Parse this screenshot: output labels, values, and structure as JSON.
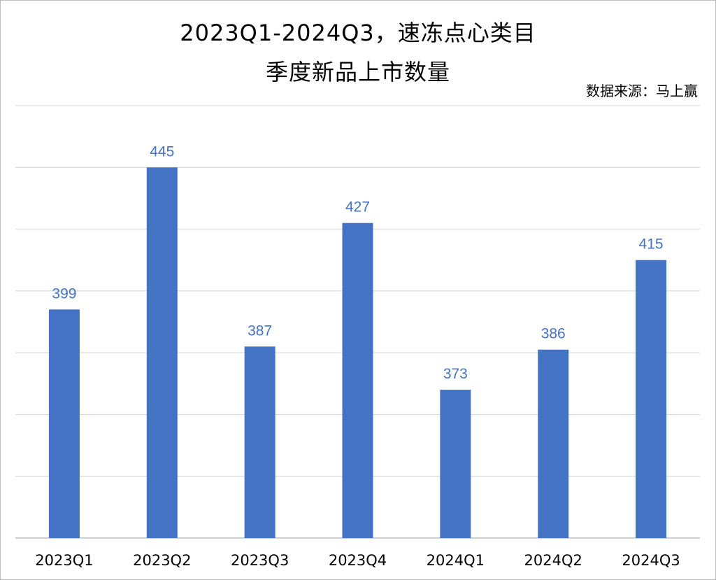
{
  "chart_data": {
    "type": "bar",
    "title_line1": "2023Q1-2024Q3，速冻点心类目",
    "title_line2": "季度新品上市数量",
    "source": "数据来源：马上赢",
    "categories": [
      "2023Q1",
      "2023Q2",
      "2023Q3",
      "2023Q4",
      "2024Q1",
      "2024Q2",
      "2024Q3"
    ],
    "values": [
      399,
      445,
      387,
      427,
      373,
      386,
      415
    ],
    "ylim": [
      325,
      465
    ],
    "gridlines": true,
    "data_labels": true,
    "bar_color": "#4472C4",
    "label_color": "#4472C4",
    "grid_color": "#d9d9d9"
  }
}
